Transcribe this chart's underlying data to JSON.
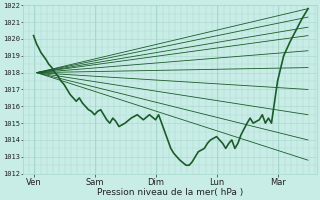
{
  "bg_color": "#c8ece6",
  "grid_color_major": "#a8d8cc",
  "grid_color_minor": "#b8e4d8",
  "line_color": "#1a5c28",
  "ylim": [
    1012,
    1022
  ],
  "yticks": [
    1012,
    1013,
    1014,
    1015,
    1016,
    1017,
    1018,
    1019,
    1020,
    1021,
    1022
  ],
  "xlabel": "Pression niveau de la mer( hPa )",
  "xtick_labels": [
    "Ven",
    "Sam",
    "Dim",
    "Lun",
    "Mar"
  ],
  "xtick_positions": [
    0,
    1,
    2,
    3,
    4
  ],
  "forecast_lines": [
    {
      "x": [
        0.05,
        4.5
      ],
      "y": [
        1018.0,
        1021.8
      ]
    },
    {
      "x": [
        0.05,
        4.5
      ],
      "y": [
        1018.0,
        1021.3
      ]
    },
    {
      "x": [
        0.05,
        4.5
      ],
      "y": [
        1018.0,
        1020.7
      ]
    },
    {
      "x": [
        0.05,
        4.5
      ],
      "y": [
        1018.0,
        1020.2
      ]
    },
    {
      "x": [
        0.05,
        4.5
      ],
      "y": [
        1018.0,
        1019.3
      ]
    },
    {
      "x": [
        0.05,
        4.5
      ],
      "y": [
        1018.0,
        1018.3
      ]
    },
    {
      "x": [
        0.05,
        4.5
      ],
      "y": [
        1018.0,
        1017.0
      ]
    },
    {
      "x": [
        0.05,
        4.5
      ],
      "y": [
        1018.0,
        1015.5
      ]
    },
    {
      "x": [
        0.05,
        4.5
      ],
      "y": [
        1018.0,
        1014.0
      ]
    },
    {
      "x": [
        0.05,
        4.5
      ],
      "y": [
        1018.0,
        1012.8
      ]
    }
  ],
  "observed_x": [
    0.0,
    0.02,
    0.05,
    0.08,
    0.12,
    0.16,
    0.2,
    0.25,
    0.3,
    0.35,
    0.4,
    0.45,
    0.5,
    0.55,
    0.6,
    0.65,
    0.7,
    0.75,
    0.8,
    0.85,
    0.9,
    0.95,
    1.0,
    1.05,
    1.1,
    1.15,
    1.2,
    1.25,
    1.3,
    1.35,
    1.4,
    1.5,
    1.6,
    1.7,
    1.8,
    1.9,
    2.0,
    2.05,
    2.1,
    2.15,
    2.2,
    2.25,
    2.3,
    2.4,
    2.5,
    2.55,
    2.6,
    2.65,
    2.7,
    2.8,
    2.85,
    2.9,
    3.0,
    3.05,
    3.1,
    3.15,
    3.2,
    3.25,
    3.3,
    3.35,
    3.4,
    3.5,
    3.55,
    3.6,
    3.7,
    3.75,
    3.8,
    3.85,
    3.9,
    4.0,
    4.1,
    4.2,
    4.3,
    4.4,
    4.5
  ],
  "observed_y": [
    1020.2,
    1020.0,
    1019.7,
    1019.5,
    1019.2,
    1019.0,
    1018.8,
    1018.5,
    1018.3,
    1018.0,
    1017.8,
    1017.5,
    1017.3,
    1017.0,
    1016.7,
    1016.5,
    1016.3,
    1016.5,
    1016.2,
    1016.0,
    1015.8,
    1015.7,
    1015.5,
    1015.7,
    1015.8,
    1015.5,
    1015.2,
    1015.0,
    1015.3,
    1015.1,
    1014.8,
    1015.0,
    1015.3,
    1015.5,
    1015.2,
    1015.5,
    1015.2,
    1015.5,
    1015.0,
    1014.5,
    1014.0,
    1013.5,
    1013.2,
    1012.8,
    1012.5,
    1012.5,
    1012.7,
    1013.0,
    1013.3,
    1013.5,
    1013.8,
    1014.0,
    1014.2,
    1014.0,
    1013.8,
    1013.5,
    1013.8,
    1014.0,
    1013.5,
    1013.8,
    1014.3,
    1015.0,
    1015.3,
    1015.0,
    1015.2,
    1015.5,
    1015.0,
    1015.3,
    1015.0,
    1017.5,
    1019.0,
    1019.8,
    1020.5,
    1021.2,
    1021.8
  ]
}
